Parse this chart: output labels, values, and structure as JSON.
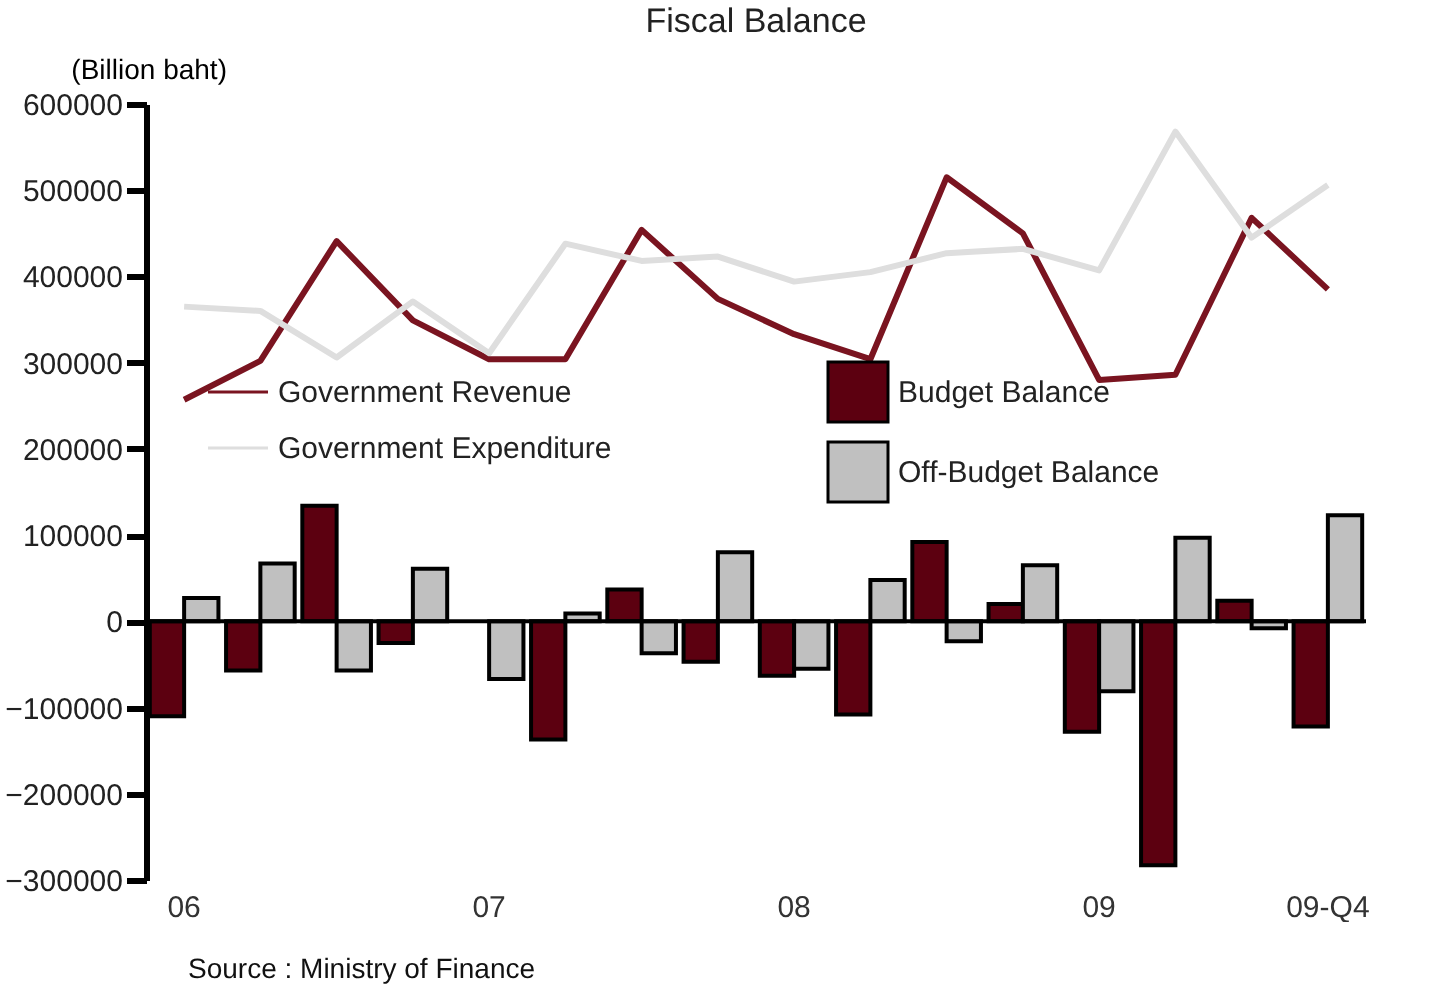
{
  "chart_data": {
    "type": "bar",
    "title": "Fiscal Balance",
    "ylabel": "(Billion baht)",
    "categories": [
      "06",
      null,
      null,
      null,
      "07",
      null,
      null,
      null,
      "08",
      null,
      null,
      null,
      "09",
      null,
      null,
      "09-Q4"
    ],
    "series": [
      {
        "name": "Government Revenue",
        "type": "line",
        "color": "#7a1420",
        "values": [
          257000,
          302000,
          441000,
          349000,
          304000,
          304000,
          454000,
          374000,
          333000,
          304000,
          515000,
          450000,
          280000,
          286000,
          468000,
          385000
        ]
      },
      {
        "name": "Government Expenditure",
        "type": "line",
        "color": "#dedede",
        "values": [
          365000,
          360000,
          306000,
          371000,
          311000,
          438000,
          418000,
          423000,
          394000,
          405000,
          427000,
          432000,
          407000,
          568000,
          445000,
          506000
        ]
      },
      {
        "name": "Budget Balance",
        "color": "#5c0010",
        "values": [
          -110000,
          -57000,
          134000,
          -25000,
          null,
          -137000,
          37000,
          -47000,
          -63000,
          -108000,
          92000,
          20000,
          -128000,
          -283000,
          24000,
          -122000
        ]
      },
      {
        "name": "Off-Budget Balance",
        "color": "#c0c0c0",
        "values": [
          27000,
          67000,
          -57000,
          61000,
          -67000,
          9000,
          -37000,
          80000,
          -55000,
          48000,
          -23000,
          65000,
          -81000,
          97000,
          -8000,
          123000
        ]
      }
    ],
    "ylim": [
      -300000,
      600000
    ],
    "yticks": [
      -300000,
      -200000,
      -100000,
      0,
      100000,
      200000,
      300000,
      400000,
      500000,
      600000
    ],
    "legend": "top",
    "ref_lines": [
      {
        "axis": "y",
        "value": 0,
        "color": "#000000"
      }
    ],
    "annotations": [
      "Source : Ministry of Finance"
    ]
  }
}
